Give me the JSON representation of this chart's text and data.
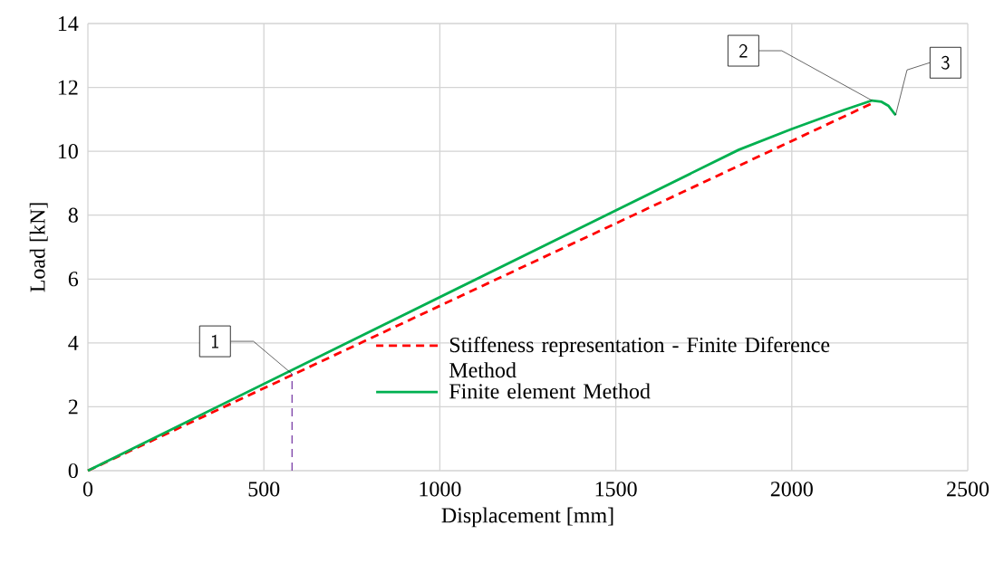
{
  "chart_data": {
    "type": "line",
    "xlabel": "Displacement [mm]",
    "ylabel": "Load [kN]",
    "xlim": [
      0,
      2500
    ],
    "ylim": [
      0,
      14
    ],
    "xticks": [
      0,
      500,
      1000,
      1500,
      2000,
      2500
    ],
    "yticks": [
      0,
      2,
      4,
      6,
      8,
      10,
      12,
      14
    ],
    "grid": true,
    "legend": "bottom right",
    "marker": "none",
    "series": [
      {
        "name": "Stiffeness representation  - Finite Diference Method",
        "color": "#ff0000",
        "line_style": "dashed",
        "x": [
          0,
          2228
        ],
        "values": [
          0,
          11.5
        ]
      },
      {
        "name": "Finite element Method",
        "color": "#00b050",
        "line_style": "solid",
        "x": [
          0,
          1850,
          2000,
          2150,
          2228,
          2255,
          2275,
          2295
        ],
        "values": [
          0,
          10.05,
          10.7,
          11.3,
          11.59,
          11.55,
          11.42,
          11.13
        ]
      },
      {
        "color": "#7030a0",
        "line_style": "dashed",
        "x": [
          580,
          580
        ],
        "values": [
          0,
          3.03
        ]
      }
    ],
    "annotations": [
      {
        "text": "1",
        "x": 580,
        "y": 3.03
      },
      {
        "text": "2",
        "x": 2228,
        "y": 11.59
      },
      {
        "text": "3",
        "x": 2295,
        "y": 11.13
      }
    ]
  }
}
